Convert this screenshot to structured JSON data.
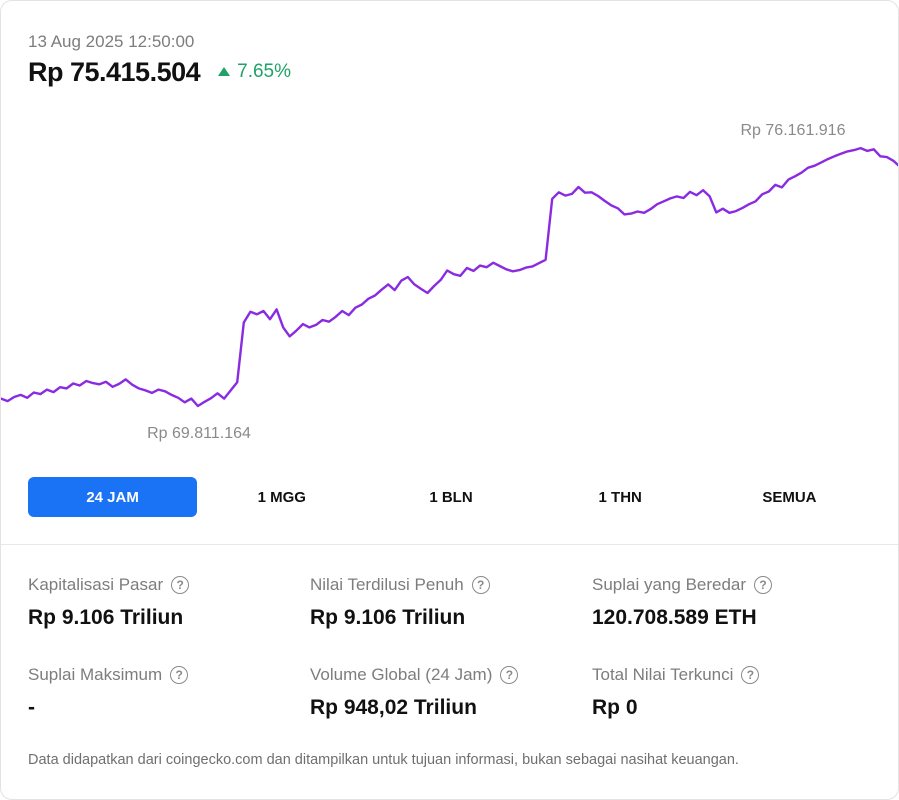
{
  "header": {
    "timestamp": "13 Aug 2025 12:50:00",
    "price": "Rp 75.415.504",
    "change": "7.65%",
    "change_direction": "up",
    "change_color": "#1ea267"
  },
  "chart_data": {
    "type": "line",
    "line_color": "#8a2be2",
    "ylim": [
      69811164,
      76161916
    ],
    "high_label": "Rp 76.161.916",
    "low_label": "Rp 69.811.164",
    "high": 76161916,
    "low": 69811164,
    "values": [
      70040000,
      69980000,
      70080000,
      70130000,
      70060000,
      70190000,
      70150000,
      70260000,
      70200000,
      70320000,
      70290000,
      70410000,
      70360000,
      70470000,
      70420000,
      70390000,
      70450000,
      70330000,
      70400000,
      70510000,
      70380000,
      70290000,
      70240000,
      70180000,
      70260000,
      70220000,
      70130000,
      70060000,
      69950000,
      70040000,
      69860000,
      69960000,
      70050000,
      70170000,
      70040000,
      70240000,
      70440000,
      71900000,
      72160000,
      72100000,
      72180000,
      71980000,
      72220000,
      71780000,
      71560000,
      71700000,
      71860000,
      71780000,
      71840000,
      71960000,
      71920000,
      72040000,
      72180000,
      72080000,
      72260000,
      72340000,
      72480000,
      72560000,
      72700000,
      72830000,
      72690000,
      72920000,
      73010000,
      72830000,
      72720000,
      72620000,
      72790000,
      72940000,
      73170000,
      73080000,
      73040000,
      73230000,
      73160000,
      73290000,
      73250000,
      73360000,
      73280000,
      73200000,
      73150000,
      73180000,
      73240000,
      73270000,
      73350000,
      73430000,
      74920000,
      75080000,
      75000000,
      75040000,
      75210000,
      75070000,
      75080000,
      74990000,
      74870000,
      74760000,
      74690000,
      74540000,
      74560000,
      74610000,
      74580000,
      74670000,
      74790000,
      74860000,
      74930000,
      74980000,
      74940000,
      75090000,
      75010000,
      75130000,
      74980000,
      74590000,
      74680000,
      74580000,
      74620000,
      74700000,
      74790000,
      74860000,
      75030000,
      75100000,
      75260000,
      75200000,
      75390000,
      75470000,
      75560000,
      75680000,
      75730000,
      75810000,
      75890000,
      75960000,
      76020000,
      76080000,
      76110000,
      76160000,
      76090000,
      76130000,
      75960000,
      75940000,
      75850000,
      75700000
    ]
  },
  "tabs": [
    {
      "label": "24 JAM",
      "active": true
    },
    {
      "label": "1 MGG",
      "active": false
    },
    {
      "label": "1 BLN",
      "active": false
    },
    {
      "label": "1 THN",
      "active": false
    },
    {
      "label": "SEMUA",
      "active": false
    }
  ],
  "stats": [
    {
      "label": "Kapitalisasi Pasar",
      "value": "Rp 9.106 Triliun"
    },
    {
      "label": "Nilai Terdilusi Penuh",
      "value": "Rp 9.106 Triliun"
    },
    {
      "label": "Suplai yang Beredar",
      "value": "120.708.589 ETH"
    },
    {
      "label": "Suplai Maksimum",
      "value": "-"
    },
    {
      "label": "Volume Global (24 Jam)",
      "value": "Rp 948,02 Triliun"
    },
    {
      "label": "Total Nilai Terkunci",
      "value": "Rp 0"
    }
  ],
  "help_glyph": "?",
  "disclaimer": "Data didapatkan dari coingecko.com dan ditampilkan untuk tujuan informasi, bukan sebagai nasihat keuangan.",
  "colors": {
    "accent": "#1a73f5",
    "positive": "#1ea267"
  }
}
